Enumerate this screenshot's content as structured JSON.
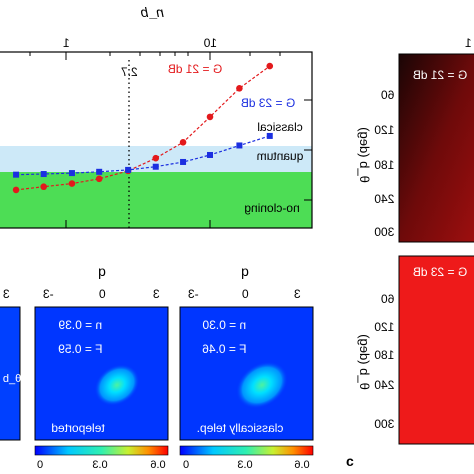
{
  "top_plot": {
    "x_axis_title": "n_b",
    "x_tick_labels": [
      "1",
      "10"
    ],
    "marker_label": "2.7",
    "region_labels": [
      "classical",
      "quantum",
      "no-cloning"
    ],
    "series_labels": [
      "G = 21 dB",
      "G = 23 dB"
    ],
    "colors": {
      "red": "#e3191c",
      "blue": "#1b2fe0",
      "quantum_band": "#cde9f8",
      "nocloning_band": "#4ddd55"
    }
  },
  "chart_data": {
    "type": "line",
    "xlabel": "n_b",
    "x_scale": "log",
    "reference_line": 2.7,
    "regions": [
      {
        "label": "classical",
        "from": 0.5,
        "to": 1.0
      },
      {
        "label": "quantum",
        "from": 0.5,
        "to": 0.56
      },
      {
        "label": "no-cloning",
        "from": 0.56,
        "to": 0.67
      }
    ],
    "series": [
      {
        "name": "G = 21 dB",
        "color": "#e3191c",
        "x": [
          0.12,
          0.2,
          0.3,
          0.45,
          0.7,
          1.1,
          1.7,
          2.7,
          4.2,
          6.5,
          10,
          16,
          26
        ],
        "y": [
          0.47,
          0.475,
          0.482,
          0.49,
          0.5,
          0.51,
          0.525,
          0.55,
          0.59,
          0.64,
          0.72,
          0.81,
          0.88
        ]
      },
      {
        "name": "G = 23 dB",
        "color": "#1b2fe0",
        "x": [
          0.12,
          0.2,
          0.3,
          0.45,
          0.7,
          1.1,
          1.7,
          2.7,
          4.2,
          6.5,
          10,
          16,
          26
        ],
        "y": [
          0.532,
          0.534,
          0.536,
          0.538,
          0.54,
          0.543,
          0.547,
          0.553,
          0.563,
          0.578,
          0.6,
          0.63,
          0.66
        ]
      }
    ]
  },
  "right_panels": [
    {
      "title": "G = 21 dB",
      "axis_label": "θ_b (deg)",
      "tick_labels": [
        "60",
        "120",
        "180",
        "240",
        "300"
      ],
      "fill": "#8b0d0d",
      "fill_top": "#250707"
    },
    {
      "title": "G = 23 dB",
      "axis_label": "θ_b (deg)",
      "tick_labels": [
        "60",
        "120",
        "180",
        "240",
        "300"
      ],
      "fill": "#ee1a1a",
      "fill_top": "#e01414"
    }
  ],
  "top_right_tick": "1",
  "wigner_panels": [
    {
      "caption": "teleported",
      "fidelity": "F = 0.59",
      "nth": "n = 0.39",
      "axis_title": "q",
      "tick_labels": [
        "-3",
        "0",
        "3"
      ]
    },
    {
      "caption": "classically telep.",
      "fidelity": "F = 0.46",
      "nth": "n = 0.30",
      "axis_title": "q",
      "tick_labels": [
        "-3",
        "0",
        "3"
      ]
    }
  ],
  "left_panel_partial": {
    "tick_label": "3",
    "symbol": "θ_b"
  },
  "colorbar": {
    "tick_labels": [
      "0",
      "0.3",
      "0.6"
    ],
    "gradient": [
      "#0000ff",
      "#00c8ff",
      "#30f0b0",
      "#c8f030",
      "#ff9000",
      "#ff0000"
    ]
  },
  "panel_label": "c"
}
